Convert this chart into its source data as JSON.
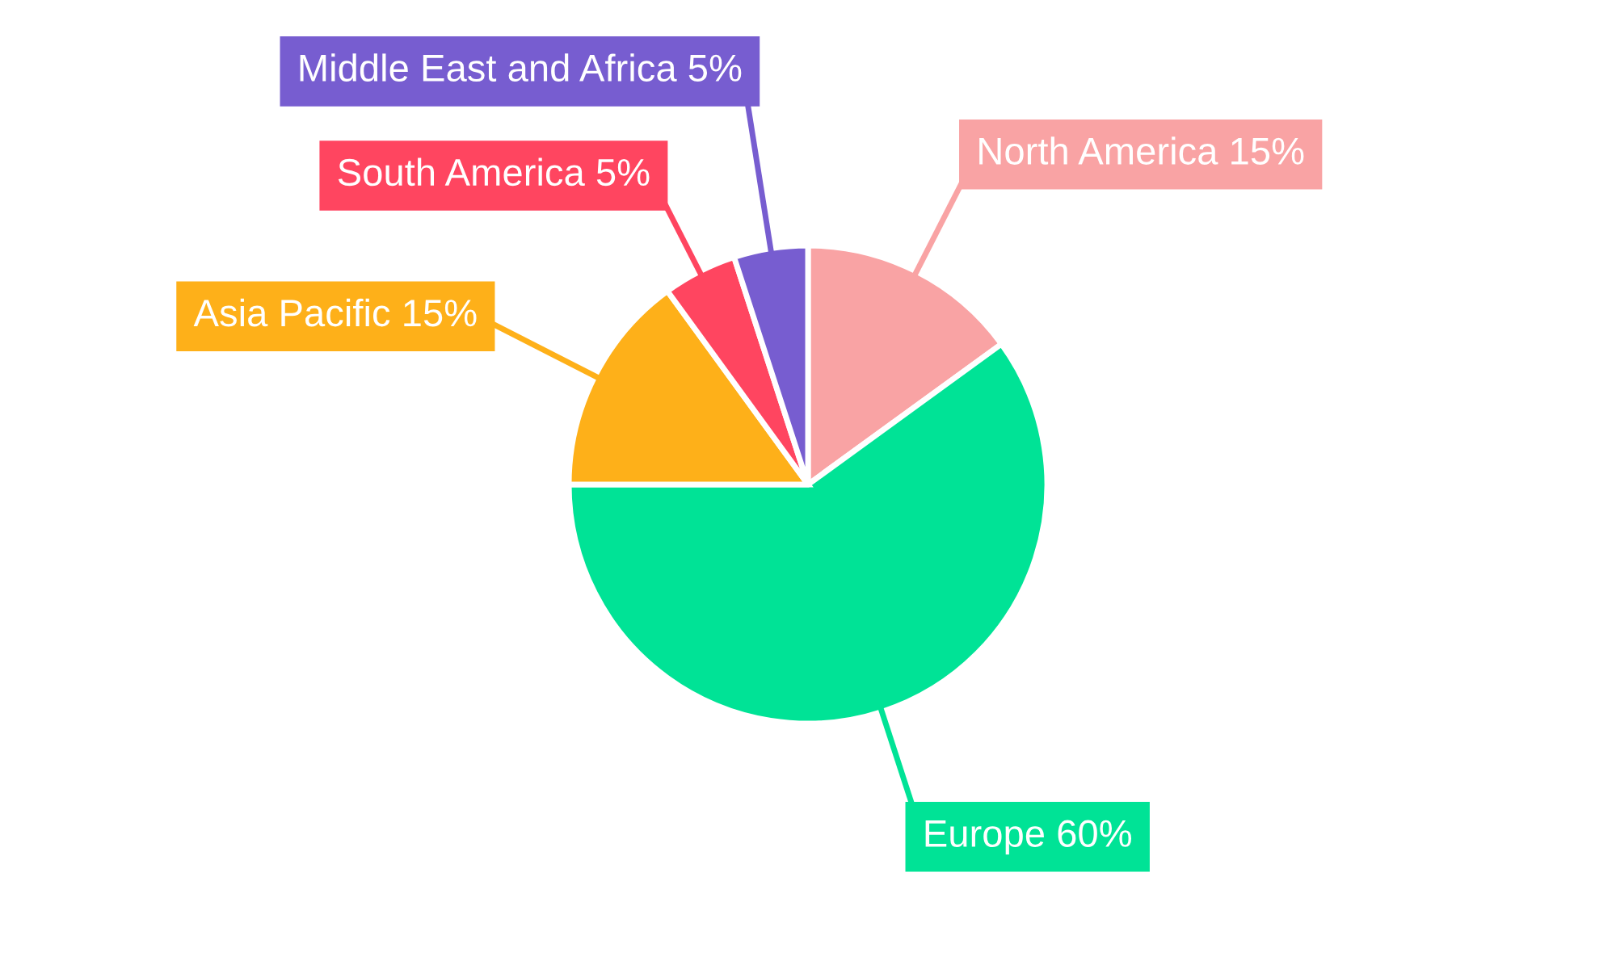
{
  "chart_data": {
    "type": "pie",
    "categories": [
      "North America",
      "Europe",
      "Asia Pacific",
      "South America",
      "Middle East and Africa"
    ],
    "values": [
      15,
      60,
      15,
      5,
      5
    ],
    "colors": [
      "#f9a3a4",
      "#00e396",
      "#feb019",
      "#ff4560",
      "#775dd0"
    ],
    "value_labels": [
      "15%",
      "60%",
      "15%",
      "5%",
      "5%"
    ],
    "legend": false
  }
}
